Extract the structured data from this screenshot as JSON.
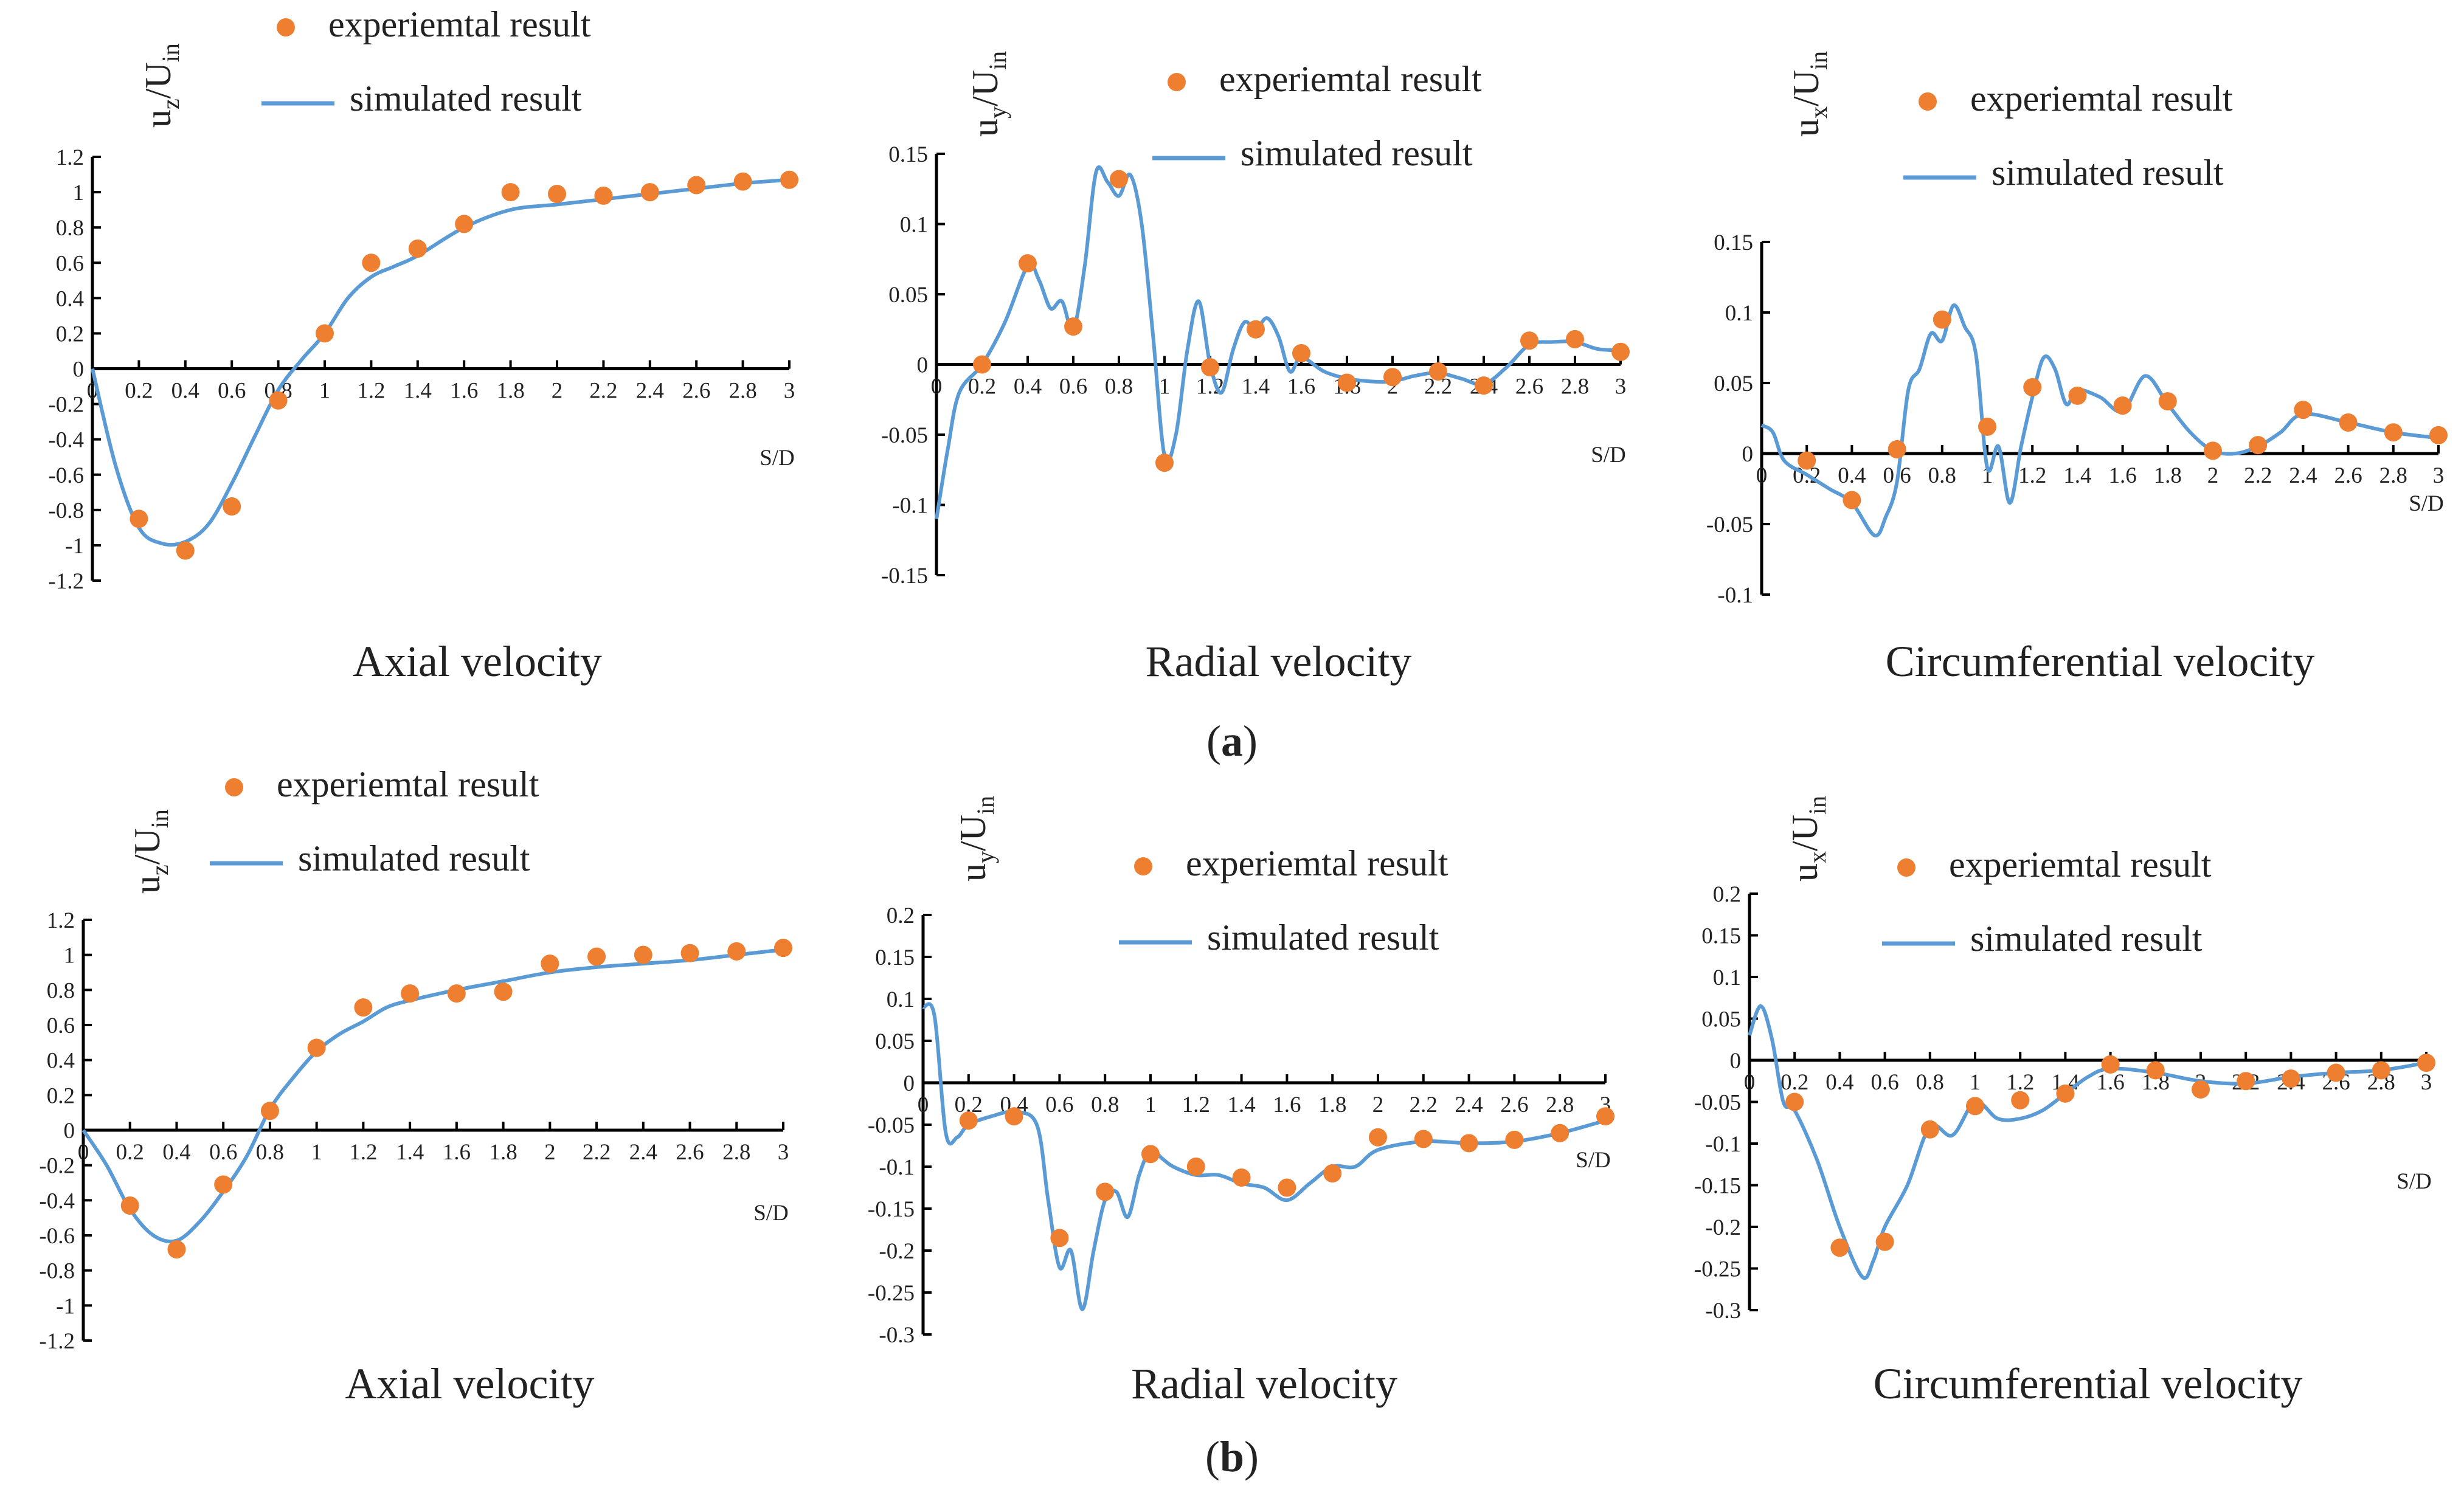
{
  "figure_labels": {
    "a": "a",
    "b": "b"
  },
  "colors": {
    "experimental": "#EE7E30",
    "simulated": "#5B9BD5",
    "axis": "#000000"
  },
  "chart_data": [
    {
      "id": "a-axial",
      "type": "line",
      "title": "Axial velocity",
      "xlabel": "S/D",
      "ylabel": {
        "main": "u",
        "sub": "z",
        "mid": "/U",
        "sub2": "in"
      },
      "xlim": [
        0,
        3
      ],
      "ylim": [
        -1.2,
        1.2
      ],
      "xticks_step": 0.2,
      "yticks_step": 0.2,
      "x_tick_labels": [
        "0",
        "0.2",
        "0.4",
        "0.6",
        "0.8",
        "1",
        "1.2",
        "1.4",
        "1.6",
        "1.8",
        "2",
        "2.2",
        "2.4",
        "2.6",
        "2.8",
        "3"
      ],
      "y_tick_labels": [
        "-1.2",
        "-1",
        "-0.8",
        "-0.6",
        "-0.4",
        "-0.2",
        "0",
        "0.2",
        "0.4",
        "0.6",
        "0.8",
        "1",
        "1.2"
      ],
      "legend": {
        "experimental": "experiemtal result",
        "simulated": "simulated result"
      },
      "series": [
        {
          "name": "experiemtal result",
          "kind": "scatter",
          "x": [
            0.2,
            0.4,
            0.6,
            0.8,
            1,
            1.2,
            1.4,
            1.6,
            1.8,
            2,
            2.2,
            2.4,
            2.6,
            2.8,
            3
          ],
          "y": [
            -0.85,
            -1.03,
            -0.78,
            -0.18,
            0.2,
            0.6,
            0.68,
            0.82,
            1.0,
            0.99,
            0.98,
            1.0,
            1.04,
            1.06,
            1.07
          ]
        },
        {
          "name": "simulated result",
          "kind": "line",
          "x": [
            0,
            0.1,
            0.2,
            0.3,
            0.4,
            0.5,
            0.6,
            0.7,
            0.8,
            0.9,
            1.0,
            1.1,
            1.2,
            1.3,
            1.4,
            1.6,
            1.8,
            2.0,
            2.2,
            2.4,
            2.6,
            2.8,
            3.0
          ],
          "y": [
            0,
            -0.55,
            -0.9,
            -0.99,
            -0.98,
            -0.88,
            -0.65,
            -0.38,
            -0.12,
            0.05,
            0.2,
            0.4,
            0.52,
            0.58,
            0.64,
            0.8,
            0.9,
            0.93,
            0.96,
            0.99,
            1.02,
            1.05,
            1.07
          ]
        }
      ]
    },
    {
      "id": "a-radial",
      "type": "line",
      "title": "Radial velocity",
      "xlabel": "S/D",
      "ylabel": {
        "main": "u",
        "sub": "y",
        "mid": "/U",
        "sub2": "in"
      },
      "xlim": [
        0,
        3
      ],
      "ylim": [
        -0.15,
        0.15
      ],
      "xticks_step": 0.2,
      "yticks_step": 0.05,
      "x_tick_labels": [
        "0",
        "0.2",
        "0.4",
        "0.6",
        "0.8",
        "1",
        "1.2",
        "1.4",
        "1.6",
        "1.8",
        "2",
        "2.2",
        "2.4",
        "2.6",
        "2.8",
        "3"
      ],
      "y_tick_labels": [
        "-0.15",
        "-0.1",
        "-0.05",
        "0",
        "0.05",
        "0.1",
        "0.15"
      ],
      "legend": {
        "experimental": "experiemtal result",
        "simulated": "simulated result"
      },
      "series": [
        {
          "name": "experiemtal result",
          "kind": "scatter",
          "x": [
            0.2,
            0.4,
            0.6,
            0.8,
            1,
            1.2,
            1.4,
            1.6,
            1.8,
            2,
            2.2,
            2.4,
            2.6,
            2.8,
            3
          ],
          "y": [
            0.0,
            0.072,
            0.027,
            0.132,
            -0.07,
            -0.002,
            0.025,
            0.008,
            -0.013,
            -0.009,
            -0.005,
            -0.015,
            0.017,
            0.018,
            0.009
          ]
        },
        {
          "name": "simulated result",
          "kind": "line",
          "x": [
            0,
            0.05,
            0.1,
            0.2,
            0.3,
            0.4,
            0.45,
            0.5,
            0.55,
            0.6,
            0.65,
            0.7,
            0.75,
            0.8,
            0.85,
            0.9,
            0.95,
            1.0,
            1.05,
            1.1,
            1.15,
            1.2,
            1.25,
            1.3,
            1.35,
            1.4,
            1.45,
            1.5,
            1.55,
            1.6,
            1.7,
            1.8,
            1.9,
            2.0,
            2.1,
            2.2,
            2.3,
            2.4,
            2.5,
            2.6,
            2.7,
            2.8,
            2.9,
            3.0
          ],
          "y": [
            -0.11,
            -0.06,
            -0.02,
            0.0,
            0.03,
            0.07,
            0.06,
            0.04,
            0.045,
            0.025,
            0.07,
            0.137,
            0.13,
            0.12,
            0.135,
            0.1,
            0.02,
            -0.065,
            -0.05,
            0.01,
            0.045,
            0.0,
            -0.02,
            0.01,
            0.03,
            0.025,
            0.033,
            0.02,
            -0.005,
            0.005,
            -0.005,
            -0.01,
            -0.012,
            -0.012,
            -0.008,
            -0.006,
            -0.01,
            -0.014,
            -0.002,
            0.014,
            0.016,
            0.016,
            0.011,
            0.01
          ]
        }
      ]
    },
    {
      "id": "a-circ",
      "type": "line",
      "title": "Circumferential velocity",
      "xlabel": "S/D",
      "ylabel": {
        "main": "u",
        "sub": "x",
        "mid": "/U",
        "sub2": "in"
      },
      "xlim": [
        0,
        3
      ],
      "ylim": [
        -0.1,
        0.15
      ],
      "xticks_step": 0.2,
      "yticks_step": 0.05,
      "x_tick_labels": [
        "0",
        "0.2",
        "0.4",
        "0.6",
        "0.8",
        "1",
        "1.2",
        "1.4",
        "1.6",
        "1.8",
        "2",
        "2.2",
        "2.4",
        "2.6",
        "2.8",
        "3"
      ],
      "y_tick_labels": [
        "-0.1",
        "-0.05",
        "0",
        "0.05",
        "0.1",
        "0.15"
      ],
      "legend": {
        "experimental": "experiemtal result",
        "simulated": "simulated result"
      },
      "series": [
        {
          "name": "experiemtal result",
          "kind": "scatter",
          "x": [
            0.2,
            0.4,
            0.6,
            0.8,
            1,
            1.2,
            1.4,
            1.6,
            1.8,
            2,
            2.2,
            2.4,
            2.6,
            2.8,
            3
          ],
          "y": [
            -0.005,
            -0.033,
            0.003,
            0.095,
            0.019,
            0.047,
            0.041,
            0.034,
            0.037,
            0.002,
            0.006,
            0.031,
            0.022,
            0.015,
            0.013
          ]
        },
        {
          "name": "simulated result",
          "kind": "line",
          "x": [
            0,
            0.05,
            0.1,
            0.2,
            0.3,
            0.4,
            0.5,
            0.55,
            0.6,
            0.65,
            0.7,
            0.75,
            0.8,
            0.85,
            0.9,
            0.95,
            1.0,
            1.05,
            1.1,
            1.15,
            1.2,
            1.25,
            1.3,
            1.35,
            1.4,
            1.5,
            1.6,
            1.7,
            1.8,
            1.9,
            2.0,
            2.1,
            2.2,
            2.3,
            2.4,
            2.6,
            2.8,
            3.0
          ],
          "y": [
            0.02,
            0.015,
            -0.005,
            -0.015,
            -0.025,
            -0.035,
            -0.058,
            -0.045,
            -0.02,
            0.045,
            0.06,
            0.085,
            0.08,
            0.105,
            0.09,
            0.07,
            -0.01,
            0.005,
            -0.035,
            0.005,
            0.04,
            0.068,
            0.06,
            0.035,
            0.045,
            0.04,
            0.03,
            0.055,
            0.035,
            0.015,
            0.002,
            0.0,
            0.005,
            0.015,
            0.028,
            0.022,
            0.015,
            0.011
          ]
        }
      ]
    },
    {
      "id": "b-axial",
      "type": "line",
      "title": "Axial velocity",
      "xlabel": "S/D",
      "ylabel": {
        "main": "u",
        "sub": "z",
        "mid": "/U",
        "sub2": "in"
      },
      "xlim": [
        0,
        3
      ],
      "ylim": [
        -1.2,
        1.2
      ],
      "xticks_step": 0.2,
      "yticks_step": 0.2,
      "x_tick_labels": [
        "0",
        "0.2",
        "0.4",
        "0.6",
        "0.8",
        "1",
        "1.2",
        "1.4",
        "1.6",
        "1.8",
        "2",
        "2.2",
        "2.4",
        "2.6",
        "2.8",
        "3"
      ],
      "y_tick_labels": [
        "-1.2",
        "-1",
        "-0.8",
        "-0.6",
        "-0.4",
        "-0.2",
        "0",
        "0.2",
        "0.4",
        "0.6",
        "0.8",
        "1",
        "1.2"
      ],
      "legend": {
        "experimental": "experiemtal result",
        "simulated": "simulated result"
      },
      "series": [
        {
          "name": "experiemtal result",
          "kind": "scatter",
          "x": [
            0.2,
            0.4,
            0.6,
            0.8,
            1,
            1.2,
            1.4,
            1.6,
            1.8,
            2,
            2.2,
            2.4,
            2.6,
            2.8,
            3
          ],
          "y": [
            -0.43,
            -0.68,
            -0.31,
            0.11,
            0.47,
            0.7,
            0.78,
            0.78,
            0.79,
            0.95,
            0.99,
            1.0,
            1.01,
            1.02,
            1.04
          ]
        },
        {
          "name": "simulated result",
          "kind": "line",
          "x": [
            0,
            0.1,
            0.2,
            0.3,
            0.4,
            0.5,
            0.6,
            0.7,
            0.8,
            0.9,
            1.0,
            1.1,
            1.2,
            1.3,
            1.4,
            1.6,
            1.8,
            2.0,
            2.2,
            2.4,
            2.6,
            2.8,
            3.0
          ],
          "y": [
            0,
            -0.2,
            -0.45,
            -0.6,
            -0.63,
            -0.52,
            -0.35,
            -0.15,
            0.12,
            0.3,
            0.45,
            0.55,
            0.62,
            0.7,
            0.74,
            0.8,
            0.85,
            0.9,
            0.93,
            0.95,
            0.97,
            1.0,
            1.03
          ]
        }
      ]
    },
    {
      "id": "b-radial",
      "type": "line",
      "title": "Radial velocity",
      "xlabel": "S/D",
      "ylabel": {
        "main": "u",
        "sub": "y",
        "mid": "/U",
        "sub2": "in"
      },
      "xlim": [
        0,
        3
      ],
      "ylim": [
        -0.3,
        0.2
      ],
      "xticks_step": 0.2,
      "yticks_step": 0.05,
      "x_tick_labels": [
        "0",
        "0.2",
        "0.4",
        "0.6",
        "0.8",
        "1",
        "1.2",
        "1.4",
        "1.6",
        "1.8",
        "2",
        "2.2",
        "2.4",
        "2.6",
        "2.8",
        "3"
      ],
      "y_tick_labels": [
        "-0.3",
        "-0.25",
        "-0.2",
        "-0.15",
        "-0.1",
        "-0.05",
        "0",
        "0.05",
        "0.1",
        "0.15",
        "0.2"
      ],
      "legend": {
        "experimental": "experiemtal result",
        "simulated": "simulated result"
      },
      "series": [
        {
          "name": "experiemtal result",
          "kind": "scatter",
          "x": [
            0.2,
            0.4,
            0.6,
            0.8,
            1,
            1.2,
            1.4,
            1.6,
            1.8,
            2,
            2.2,
            2.4,
            2.6,
            2.8,
            3
          ],
          "y": [
            -0.045,
            -0.04,
            -0.185,
            -0.13,
            -0.085,
            -0.1,
            -0.113,
            -0.125,
            -0.108,
            -0.065,
            -0.067,
            -0.072,
            -0.068,
            -0.06,
            -0.04
          ]
        },
        {
          "name": "simulated result",
          "kind": "line",
          "x": [
            0,
            0.05,
            0.1,
            0.15,
            0.2,
            0.3,
            0.4,
            0.5,
            0.55,
            0.6,
            0.65,
            0.7,
            0.75,
            0.8,
            0.85,
            0.9,
            0.95,
            1.0,
            1.05,
            1.1,
            1.2,
            1.3,
            1.4,
            1.5,
            1.6,
            1.7,
            1.8,
            1.9,
            2.0,
            2.2,
            2.4,
            2.6,
            2.8,
            3.0
          ],
          "y": [
            0.09,
            0.08,
            -0.06,
            -0.065,
            -0.05,
            -0.04,
            -0.035,
            -0.05,
            -0.14,
            -0.22,
            -0.2,
            -0.27,
            -0.2,
            -0.14,
            -0.13,
            -0.16,
            -0.11,
            -0.08,
            -0.09,
            -0.1,
            -0.11,
            -0.11,
            -0.12,
            -0.125,
            -0.14,
            -0.12,
            -0.1,
            -0.1,
            -0.08,
            -0.07,
            -0.072,
            -0.07,
            -0.06,
            -0.045
          ]
        }
      ]
    },
    {
      "id": "b-circ",
      "type": "line",
      "title": "Circumferential velocity",
      "xlabel": "S/D",
      "ylabel": {
        "main": "u",
        "sub": "x",
        "mid": "/U",
        "sub2": "in"
      },
      "xlim": [
        0,
        3
      ],
      "ylim": [
        -0.3,
        0.2
      ],
      "xticks_step": 0.2,
      "yticks_step": 0.05,
      "x_tick_labels": [
        "0",
        "0.2",
        "0.4",
        "0.6",
        "0.8",
        "1",
        "1.2",
        "1.4",
        "1.6",
        "1.8",
        "2",
        "2.2",
        "2.4",
        "2.6",
        "2.8",
        "3"
      ],
      "y_tick_labels": [
        "-0.3",
        "-0.25",
        "-0.2",
        "-0.15",
        "-0.1",
        "-0.05",
        "0",
        "0.05",
        "0.1",
        "0.15",
        "0.2"
      ],
      "legend": {
        "experimental": "experiemtal result",
        "simulated": "simulated result"
      },
      "series": [
        {
          "name": "experiemtal result",
          "kind": "scatter",
          "x": [
            0.2,
            0.4,
            0.6,
            0.8,
            1,
            1.2,
            1.4,
            1.6,
            1.8,
            2,
            2.2,
            2.4,
            2.6,
            2.8,
            3
          ],
          "y": [
            -0.05,
            -0.225,
            -0.218,
            -0.083,
            -0.055,
            -0.048,
            -0.04,
            -0.005,
            -0.012,
            -0.035,
            -0.025,
            -0.022,
            -0.015,
            -0.012,
            -0.003
          ]
        },
        {
          "name": "simulated result",
          "kind": "line",
          "x": [
            0,
            0.05,
            0.1,
            0.15,
            0.2,
            0.3,
            0.4,
            0.5,
            0.55,
            0.6,
            0.7,
            0.8,
            0.9,
            1.0,
            1.1,
            1.2,
            1.3,
            1.4,
            1.5,
            1.6,
            1.8,
            2.0,
            2.2,
            2.4,
            2.6,
            2.8,
            3.0
          ],
          "y": [
            0.03,
            0.065,
            0.025,
            -0.05,
            -0.06,
            -0.12,
            -0.2,
            -0.26,
            -0.24,
            -0.2,
            -0.15,
            -0.08,
            -0.09,
            -0.05,
            -0.07,
            -0.07,
            -0.06,
            -0.04,
            -0.02,
            -0.01,
            -0.015,
            -0.025,
            -0.028,
            -0.02,
            -0.015,
            -0.012,
            -0.003
          ]
        }
      ]
    }
  ]
}
